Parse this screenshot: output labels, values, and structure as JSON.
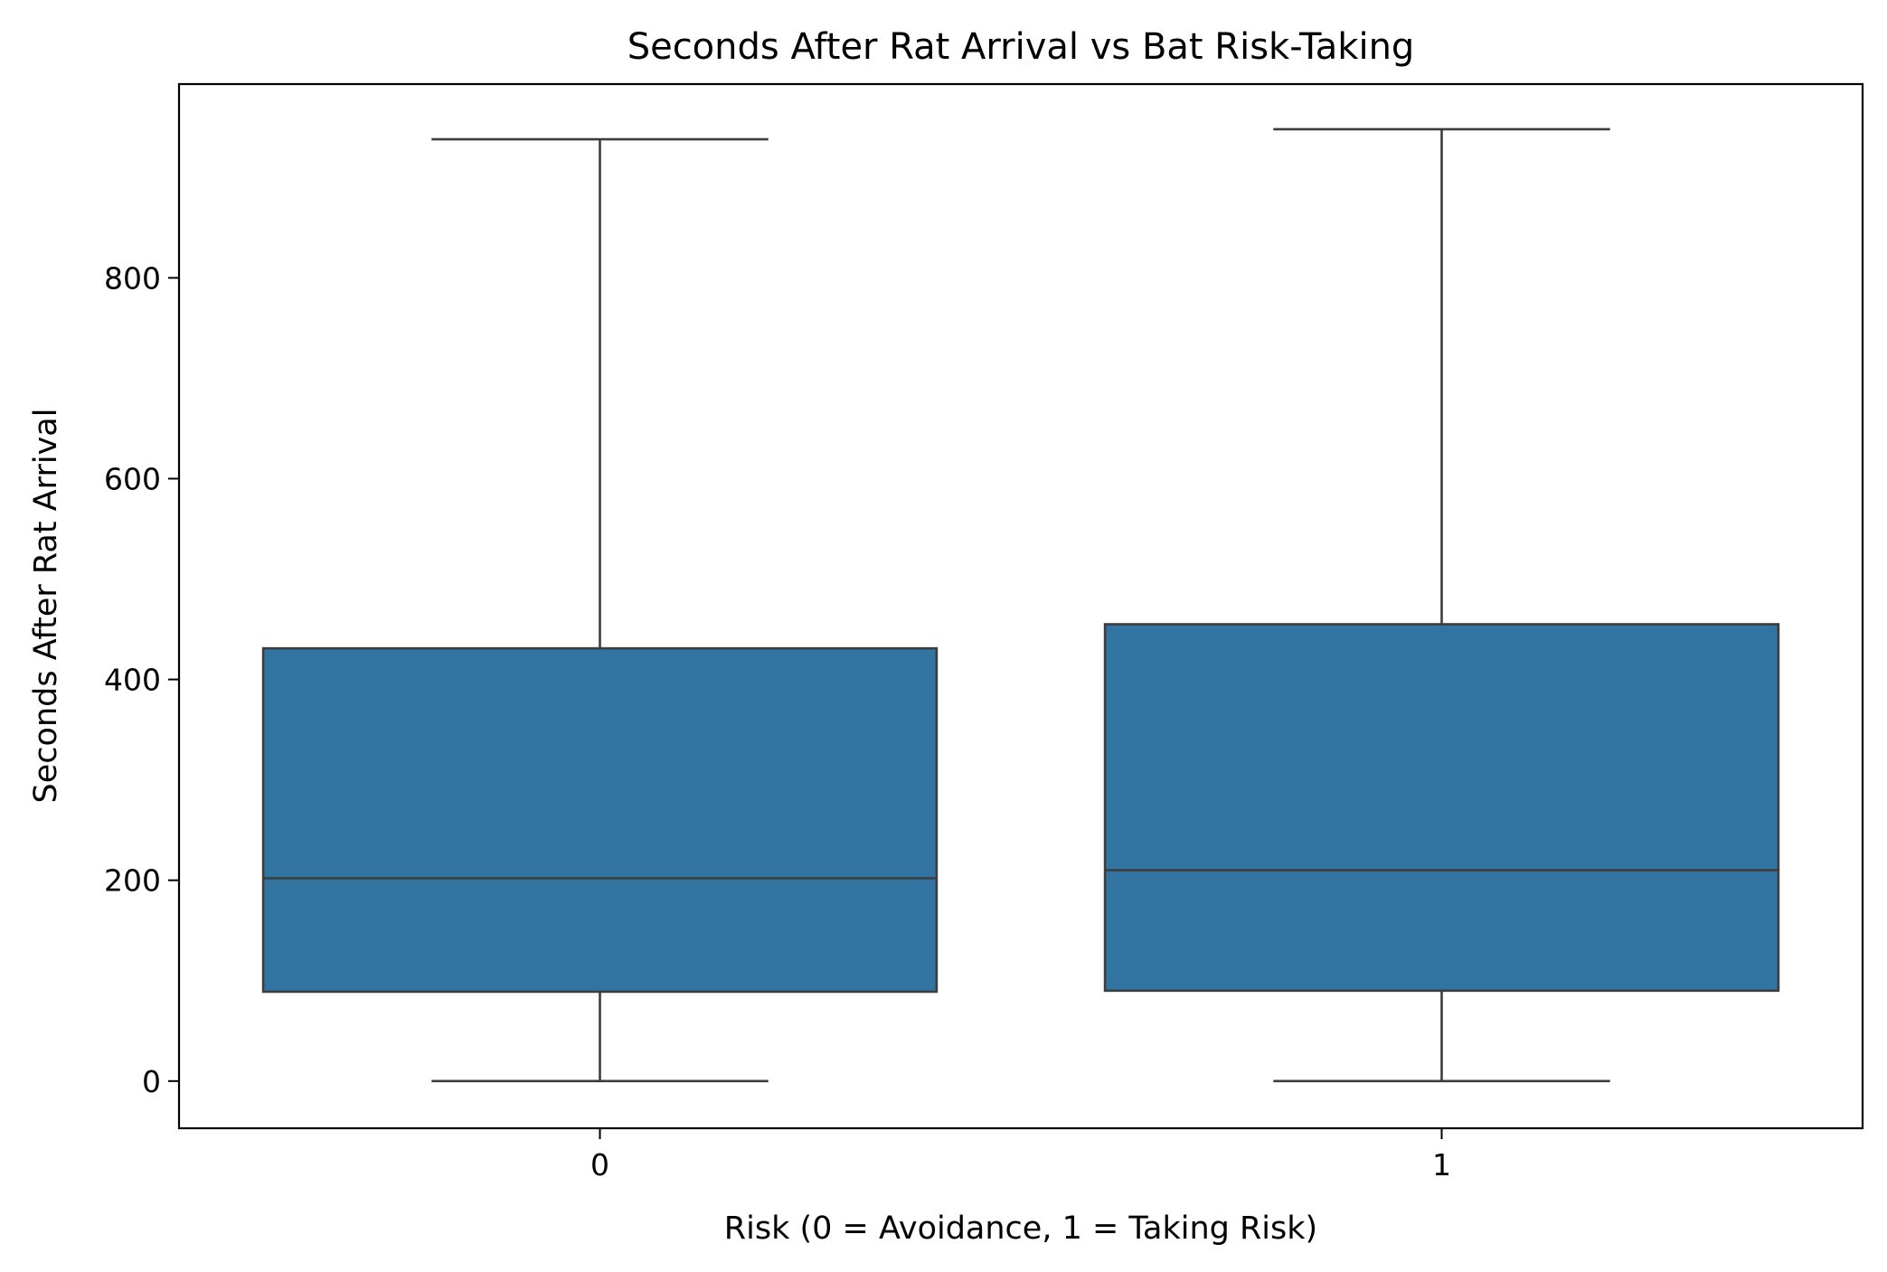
{
  "chart_data": {
    "type": "box",
    "title": "Seconds After Rat Arrival vs Bat Risk-Taking",
    "xlabel": "Risk (0 = Avoidance, 1 = Taking Risk)",
    "ylabel": "Seconds After Rat Arrival",
    "categories": [
      "0",
      "1"
    ],
    "boxes": [
      {
        "category": "0",
        "whisker_low": 0,
        "q1": 89,
        "median": 202,
        "q3": 431,
        "whisker_high": 938
      },
      {
        "category": "1",
        "whisker_low": 0,
        "q1": 90,
        "median": 210,
        "q3": 455,
        "whisker_high": 948
      }
    ],
    "ylim": [
      -47,
      993
    ],
    "yticks": [
      0,
      200,
      400,
      600,
      800
    ],
    "grid": false,
    "legend": "none",
    "colors": {
      "box_fill": "#3274a1",
      "line": "#3d3d3d",
      "axes": "#000000"
    }
  }
}
